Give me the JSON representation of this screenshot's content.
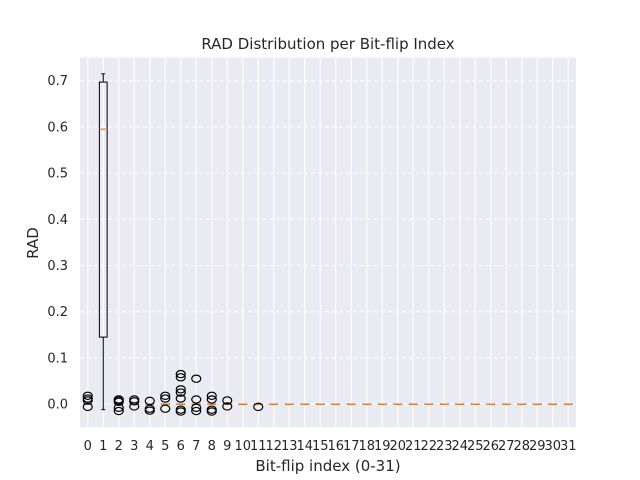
{
  "chart_data": {
    "type": "box",
    "title": "RAD Distribution per Bit-flip Index",
    "xlabel": "Bit-flip index (0-31)",
    "ylabel": "RAD",
    "ylim": [
      -0.05,
      0.75
    ],
    "yticks": [
      0.0,
      0.1,
      0.2,
      0.3,
      0.4,
      0.5,
      0.6,
      0.7
    ],
    "ytick_labels": [
      "0.0",
      "0.1",
      "0.2",
      "0.3",
      "0.4",
      "0.5",
      "0.6",
      "0.7"
    ],
    "categories": [
      "0",
      "1",
      "2",
      "3",
      "4",
      "5",
      "6",
      "7",
      "8",
      "9",
      "10",
      "11",
      "12",
      "13",
      "14",
      "15",
      "16",
      "17",
      "18",
      "19",
      "20",
      "21",
      "22",
      "23",
      "24",
      "25",
      "26",
      "27",
      "28",
      "29",
      "30",
      "31"
    ],
    "grid": true,
    "background": "#eaeaf2",
    "median_color": "#ff7f0e",
    "boxes": [
      {
        "index": 0,
        "q1": 0.0,
        "median": 0.0,
        "q3": 0.0,
        "whislo": 0.0,
        "whishi": 0.0,
        "fliers": [
          0.018,
          0.012,
          0.008,
          -0.006
        ]
      },
      {
        "index": 1,
        "q1": 0.145,
        "median": 0.595,
        "q3": 0.697,
        "whislo": -0.012,
        "whishi": 0.715,
        "fliers": []
      },
      {
        "index": 2,
        "q1": 0.0,
        "median": 0.0,
        "q3": 0.0,
        "whislo": 0.0,
        "whishi": 0.0,
        "fliers": [
          0.01,
          0.005,
          -0.008,
          -0.015,
          0.008
        ]
      },
      {
        "index": 3,
        "q1": 0.0,
        "median": 0.0,
        "q3": 0.0,
        "whislo": 0.0,
        "whishi": 0.0,
        "fliers": [
          0.01,
          0.006,
          -0.005
        ]
      },
      {
        "index": 4,
        "q1": 0.0,
        "median": 0.0,
        "q3": 0.0,
        "whislo": 0.0,
        "whishi": 0.0,
        "fliers": [
          0.007,
          -0.01,
          -0.014
        ]
      },
      {
        "index": 5,
        "q1": 0.0,
        "median": 0.0,
        "q3": 0.0,
        "whislo": 0.0,
        "whishi": 0.0,
        "fliers": [
          0.018,
          0.012,
          -0.01
        ]
      },
      {
        "index": 6,
        "q1": 0.0,
        "median": 0.0,
        "q3": 0.0,
        "whislo": 0.0,
        "whishi": 0.0,
        "fliers": [
          0.065,
          0.058,
          0.032,
          0.025,
          0.012,
          -0.012,
          -0.016
        ]
      },
      {
        "index": 7,
        "q1": 0.0,
        "median": 0.0,
        "q3": 0.0,
        "whislo": 0.0,
        "whishi": 0.0,
        "fliers": [
          0.055,
          0.01,
          -0.008,
          -0.015
        ]
      },
      {
        "index": 8,
        "q1": 0.0,
        "median": 0.0,
        "q3": 0.0,
        "whislo": 0.0,
        "whishi": 0.0,
        "fliers": [
          0.018,
          0.01,
          -0.012,
          -0.016
        ]
      },
      {
        "index": 9,
        "q1": 0.0,
        "median": 0.0,
        "q3": 0.0,
        "whislo": 0.0,
        "whishi": 0.0,
        "fliers": [
          0.008,
          -0.005
        ]
      },
      {
        "index": 10,
        "q1": 0.0,
        "median": 0.0,
        "q3": 0.0,
        "whislo": 0.0,
        "whishi": 0.0,
        "fliers": []
      },
      {
        "index": 11,
        "q1": 0.0,
        "median": 0.0,
        "q3": 0.0,
        "whislo": 0.0,
        "whishi": 0.0,
        "fliers": [
          -0.006
        ]
      },
      {
        "index": 12,
        "q1": 0.0,
        "median": 0.0,
        "q3": 0.0,
        "whislo": 0.0,
        "whishi": 0.0,
        "fliers": []
      },
      {
        "index": 13,
        "q1": 0.0,
        "median": 0.0,
        "q3": 0.0,
        "whislo": 0.0,
        "whishi": 0.0,
        "fliers": []
      },
      {
        "index": 14,
        "q1": 0.0,
        "median": 0.0,
        "q3": 0.0,
        "whislo": 0.0,
        "whishi": 0.0,
        "fliers": []
      },
      {
        "index": 15,
        "q1": 0.0,
        "median": 0.0,
        "q3": 0.0,
        "whislo": 0.0,
        "whishi": 0.0,
        "fliers": []
      },
      {
        "index": 16,
        "q1": 0.0,
        "median": 0.0,
        "q3": 0.0,
        "whislo": 0.0,
        "whishi": 0.0,
        "fliers": []
      },
      {
        "index": 17,
        "q1": 0.0,
        "median": 0.0,
        "q3": 0.0,
        "whislo": 0.0,
        "whishi": 0.0,
        "fliers": []
      },
      {
        "index": 18,
        "q1": 0.0,
        "median": 0.0,
        "q3": 0.0,
        "whislo": 0.0,
        "whishi": 0.0,
        "fliers": []
      },
      {
        "index": 19,
        "q1": 0.0,
        "median": 0.0,
        "q3": 0.0,
        "whislo": 0.0,
        "whishi": 0.0,
        "fliers": []
      },
      {
        "index": 20,
        "q1": 0.0,
        "median": 0.0,
        "q3": 0.0,
        "whislo": 0.0,
        "whishi": 0.0,
        "fliers": []
      },
      {
        "index": 21,
        "q1": 0.0,
        "median": 0.0,
        "q3": 0.0,
        "whislo": 0.0,
        "whishi": 0.0,
        "fliers": []
      },
      {
        "index": 22,
        "q1": 0.0,
        "median": 0.0,
        "q3": 0.0,
        "whislo": 0.0,
        "whishi": 0.0,
        "fliers": []
      },
      {
        "index": 23,
        "q1": 0.0,
        "median": 0.0,
        "q3": 0.0,
        "whislo": 0.0,
        "whishi": 0.0,
        "fliers": []
      },
      {
        "index": 24,
        "q1": 0.0,
        "median": 0.0,
        "q3": 0.0,
        "whislo": 0.0,
        "whishi": 0.0,
        "fliers": []
      },
      {
        "index": 25,
        "q1": 0.0,
        "median": 0.0,
        "q3": 0.0,
        "whislo": 0.0,
        "whishi": 0.0,
        "fliers": []
      },
      {
        "index": 26,
        "q1": 0.0,
        "median": 0.0,
        "q3": 0.0,
        "whislo": 0.0,
        "whishi": 0.0,
        "fliers": []
      },
      {
        "index": 27,
        "q1": 0.0,
        "median": 0.0,
        "q3": 0.0,
        "whislo": 0.0,
        "whishi": 0.0,
        "fliers": []
      },
      {
        "index": 28,
        "q1": 0.0,
        "median": 0.0,
        "q3": 0.0,
        "whislo": 0.0,
        "whishi": 0.0,
        "fliers": []
      },
      {
        "index": 29,
        "q1": 0.0,
        "median": 0.0,
        "q3": 0.0,
        "whislo": 0.0,
        "whishi": 0.0,
        "fliers": []
      },
      {
        "index": 30,
        "q1": 0.0,
        "median": 0.0,
        "q3": 0.0,
        "whislo": 0.0,
        "whishi": 0.0,
        "fliers": []
      },
      {
        "index": 31,
        "q1": 0.0,
        "median": 0.0,
        "q3": 0.0,
        "whislo": 0.0,
        "whishi": 0.0,
        "fliers": []
      }
    ]
  }
}
